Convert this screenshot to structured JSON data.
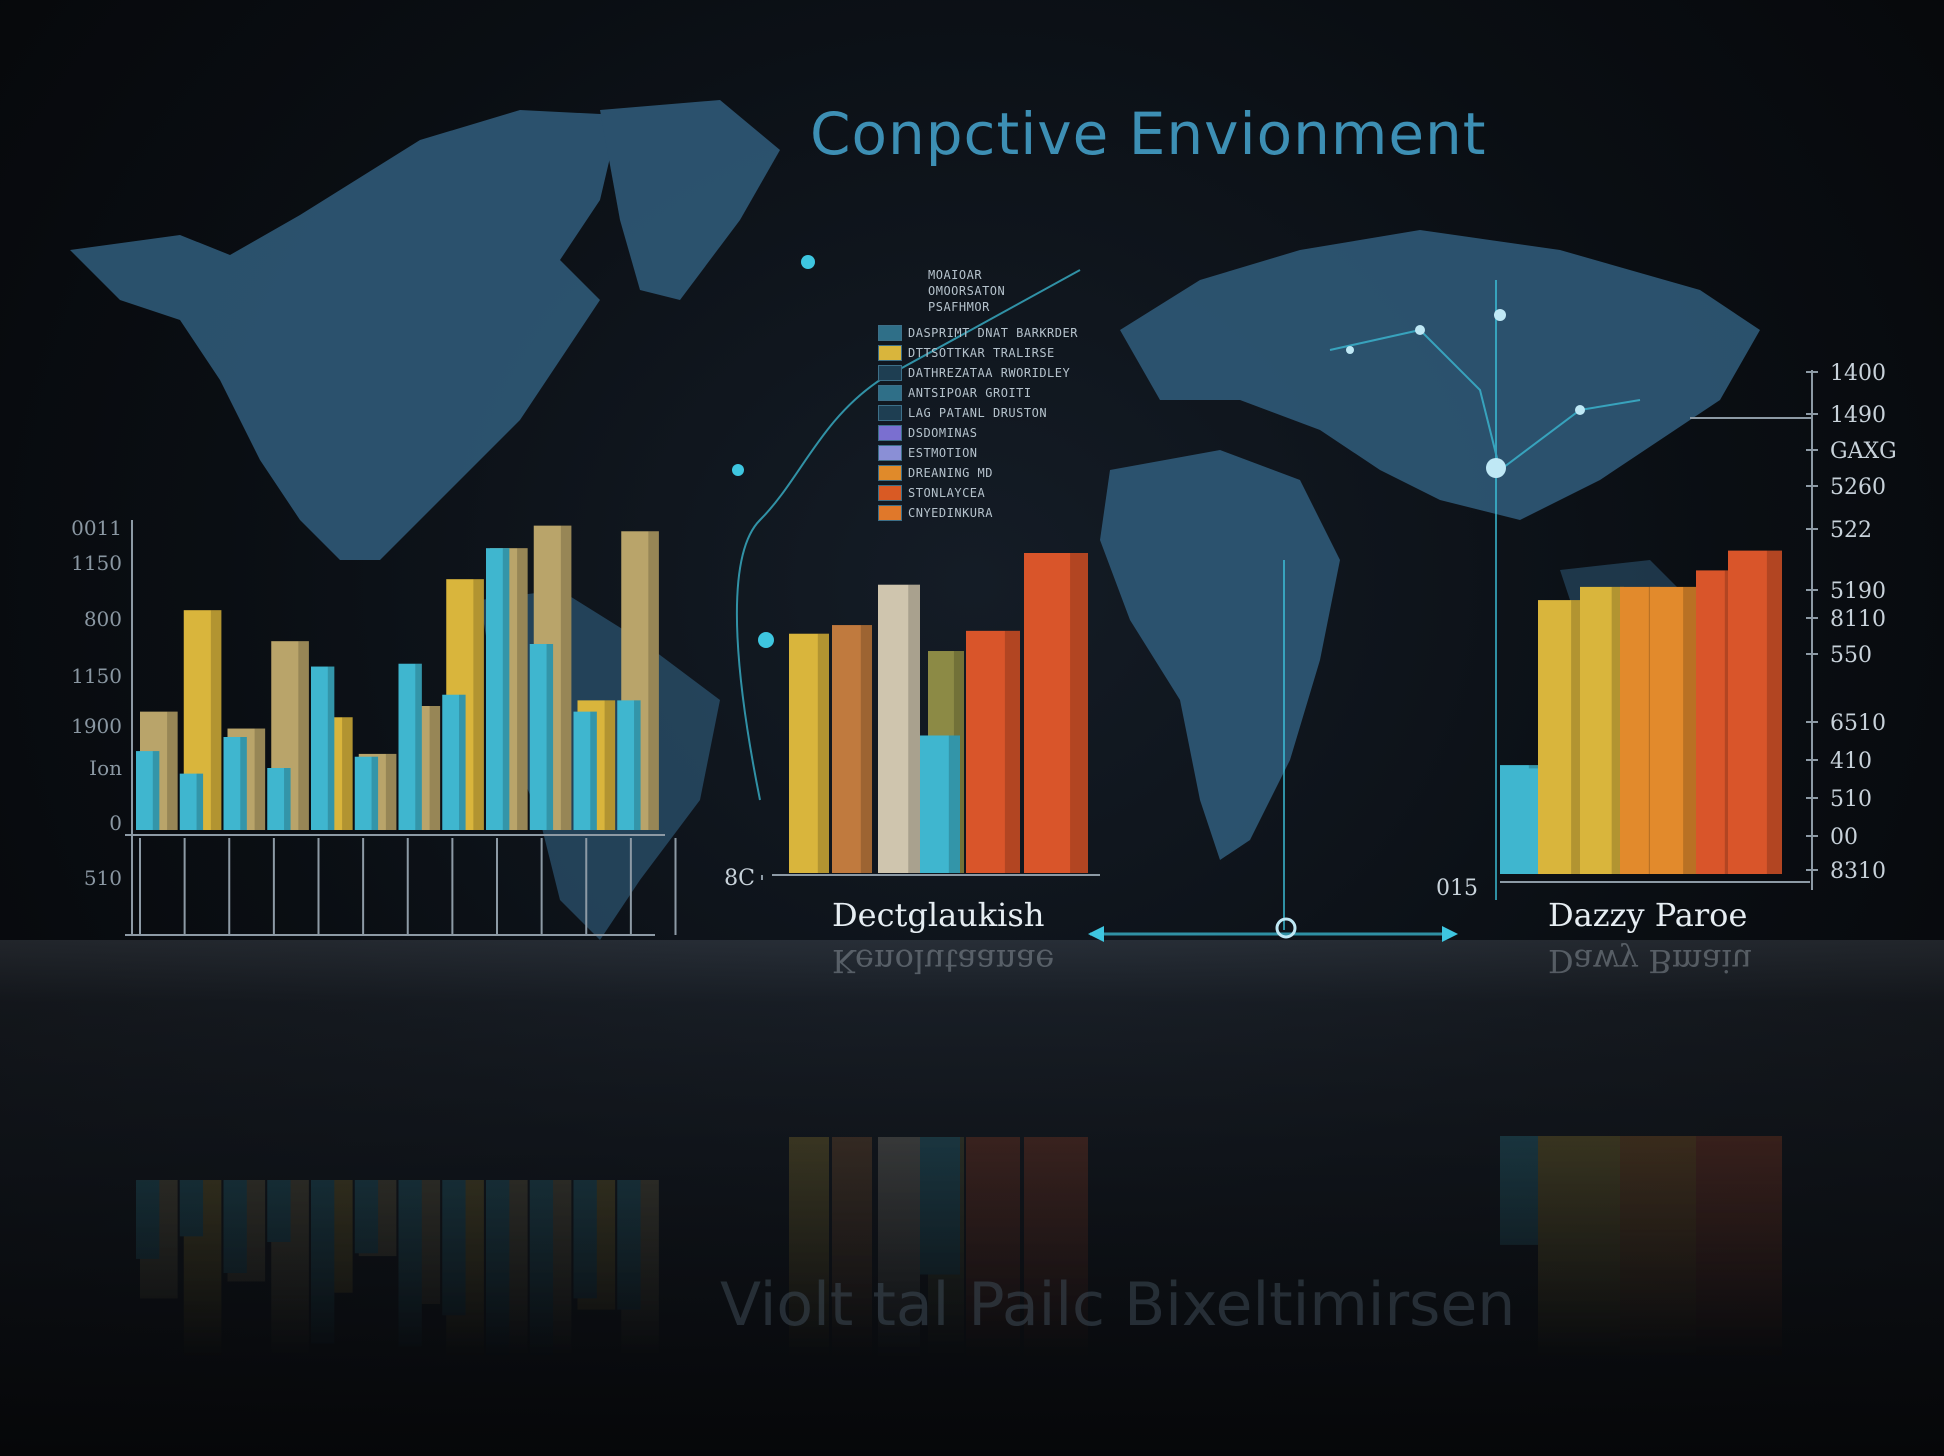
{
  "title": "Conpctive Envionment",
  "title_reflection": "Violt tal Pailc Bixeltimirsen",
  "legend": {
    "items": [
      {
        "text": "DASPRIMT DNAT BARKRDER",
        "color": "#2f6f88"
      },
      {
        "text": "DTTSOTTKAR TRALIRSE",
        "color": "#d9b53c"
      },
      {
        "text": "DATHREZATAA RWORIDLEY",
        "color": "#1e3e52"
      },
      {
        "text": "ANTSIPOAR GROITI",
        "color": "#2f6f88"
      },
      {
        "text": "LAG PATANL DRUSTON",
        "color": "#1e3e52"
      },
      {
        "text": "DSDOMINAS",
        "color": "#7a6fd0"
      },
      {
        "text": "ESTMOTION",
        "color": "#8a8fd6"
      },
      {
        "text": "DREANING MD",
        "color": "#e08a2a"
      },
      {
        "text": "STONLAYCEA",
        "color": "#d95a24"
      },
      {
        "text": "CNYEDINKURA",
        "color": "#e0782a"
      }
    ],
    "top_notes": [
      "MOAIOAR",
      "OMOORSATON",
      "PSAFHMOR"
    ]
  },
  "colors": {
    "teal": "#3fb6cf",
    "gold": "#d9b53c",
    "khaki": "#b9a46a",
    "orange": "#e28a2c",
    "red_orange": "#d9552a",
    "brown": "#c07a3e",
    "beige": "#cfc5ae",
    "olive": "#8c8a45",
    "accent": "#3ec6e0"
  },
  "chart_data": [
    {
      "type": "bar",
      "title": "",
      "ylim": [
        0,
        1100
      ],
      "y_tick_labels": [
        "0",
        "Ion",
        "1900",
        "1150",
        "800",
        "1150",
        "0011"
      ],
      "below_zero_label": "510",
      "series": [
        {
          "values": [
            420,
            780,
            360,
            670,
            400,
            270,
            440,
            890,
            1000,
            1080,
            460,
            1060
          ]
        },
        {
          "values": [
            280,
            200,
            330,
            220,
            580,
            260,
            590,
            480,
            1000,
            660,
            420,
            460
          ]
        }
      ]
    },
    {
      "type": "bar",
      "title": "",
      "xlabel": "Dectglaukish",
      "xlabel_reflection": "Kenolutaanae",
      "axis_label": "8C",
      "bars": [
        {
          "value": 830,
          "color": "gold"
        },
        {
          "value": 860,
          "color": "brown"
        },
        {
          "value": 1000,
          "color": "beige"
        },
        {
          "value": 770,
          "color": "olive"
        },
        {
          "value": 530,
          "color": "teal"
        },
        {
          "value": 840,
          "color": "red_orange"
        },
        {
          "value": 1110,
          "color": "red_orange"
        }
      ]
    },
    {
      "type": "bar",
      "title": "",
      "xlabel": "Dazzy Paroe",
      "xlabel_reflection": "Dawy Bmaiu",
      "x_tick_label": "015",
      "right_tick_labels": [
        "1400",
        "1490",
        "GAXG",
        "5260",
        "522",
        "5190",
        "8110",
        "550",
        "6510",
        "410",
        "510",
        "00",
        "8310"
      ],
      "bars": [
        {
          "value": 330,
          "color": "teal"
        },
        {
          "value": 320,
          "color": "teal"
        },
        {
          "value": 250,
          "color": "teal"
        },
        {
          "value": 830,
          "color": "gold"
        },
        {
          "value": 870,
          "color": "gold"
        },
        {
          "value": 870,
          "color": "orange"
        },
        {
          "value": 870,
          "color": "orange"
        },
        {
          "value": 920,
          "color": "red_orange"
        },
        {
          "value": 980,
          "color": "red_orange"
        }
      ]
    }
  ]
}
